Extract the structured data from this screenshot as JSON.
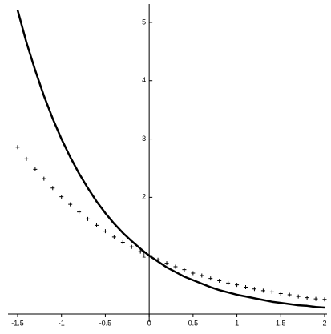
{
  "chart_data": {
    "type": "line",
    "x": [
      -1.5,
      -1.4,
      -1.3,
      -1.2,
      -1.1,
      -1.0,
      -0.9,
      -0.8,
      -0.7,
      -0.6,
      -0.5,
      -0.4,
      -0.3,
      -0.2,
      -0.1,
      0,
      0.1,
      0.2,
      0.3,
      0.4,
      0.5,
      0.6,
      0.7,
      0.8,
      0.9,
      1.0,
      1.1,
      1.2,
      1.3,
      1.4,
      1.5,
      1.6,
      1.7,
      1.8,
      1.9,
      2.0
    ],
    "series": [
      {
        "color": "#000000",
        "style": "line",
        "values": [
          5.21,
          4.66,
          4.18,
          3.74,
          3.35,
          3.0,
          2.69,
          2.41,
          2.16,
          1.93,
          1.73,
          1.55,
          1.39,
          1.25,
          1.12,
          1.0,
          0.9,
          0.8,
          0.72,
          0.64,
          0.58,
          0.52,
          0.46,
          0.41,
          0.37,
          0.33,
          0.3,
          0.27,
          0.24,
          0.21,
          0.19,
          0.17,
          0.15,
          0.14,
          0.12,
          0.11
        ]
      },
      {
        "color": "#000000",
        "style": "cross",
        "values": [
          2.86,
          2.66,
          2.48,
          2.32,
          2.16,
          2.01,
          1.88,
          1.75,
          1.63,
          1.52,
          1.42,
          1.32,
          1.23,
          1.15,
          1.07,
          1.0,
          0.93,
          0.87,
          0.81,
          0.76,
          0.7,
          0.66,
          0.61,
          0.57,
          0.53,
          0.5,
          0.46,
          0.43,
          0.4,
          0.38,
          0.35,
          0.33,
          0.3,
          0.28,
          0.26,
          0.25
        ]
      }
    ],
    "xlim": [
      -1.5,
      2
    ],
    "ylim": [
      0,
      5.26
    ],
    "xticks": [
      -1.5,
      -1,
      -0.5,
      0,
      0.5,
      1,
      1.5,
      2
    ],
    "yticks": [
      1,
      2,
      3,
      4,
      5
    ],
    "grid": false
  }
}
